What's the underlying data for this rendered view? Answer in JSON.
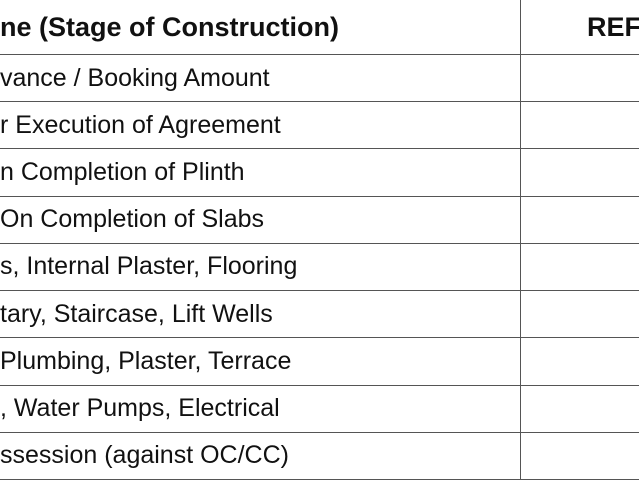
{
  "table": {
    "header": [
      "ne (Stage of Construction)",
      "REF"
    ],
    "rows": [
      "vance / Booking Amount",
      "r Execution of Agreement",
      "n Completion of Plinth",
      "On Completion of Slabs",
      "s, Internal Plaster, Flooring",
      "tary, Staircase, Lift Wells",
      "Plumbing, Plaster, Terrace",
      ", Water Pumps, Electrical",
      "ssession (against OC/CC)"
    ]
  }
}
